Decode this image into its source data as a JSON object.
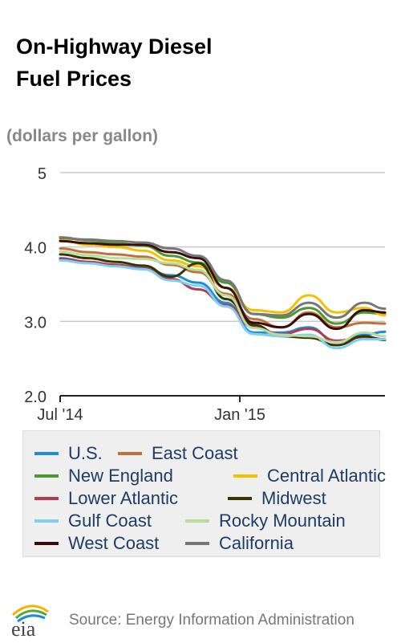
{
  "title_line1": "On-Highway Diesel",
  "title_line2": "Fuel Prices",
  "unit_label": "(dollars per gallon)",
  "source": "Source: Energy Information Administration",
  "logo_text": "eia",
  "colors": {
    "U.S.": "#1a8ed8",
    "East Coast": "#c0703a",
    "New England": "#4a9a2c",
    "Central Atlantic": "#f2c200",
    "Lower Atlantic": "#b23b52",
    "Midwest": "#3a3500",
    "Gulf Coast": "#7fd0f0",
    "Rocky Mountain": "#b9dc9e",
    "West Coast": "#3a0d0d",
    "California": "#777777"
  },
  "chart_data": {
    "type": "line",
    "title": "On-Highway Diesel Fuel Prices",
    "ylabel": "(dollars per gallon)",
    "ylim": [
      2.0,
      5.0
    ],
    "yticks": [
      "2.0",
      "3.0",
      "4.0",
      "5"
    ],
    "xlim": [
      "2014-07-07",
      "2015-06-01"
    ],
    "xticks": [
      {
        "date": "2014-07-07",
        "label": "Jul '14"
      },
      {
        "date": "2015-01-05",
        "label": "Jan '15"
      }
    ],
    "grid": "horizontal",
    "legend_position": "bottom",
    "x": [
      "2014-07-07",
      "2014-08-04",
      "2014-09-01",
      "2014-09-29",
      "2014-10-27",
      "2014-11-24",
      "2014-12-22",
      "2015-01-19",
      "2015-02-16",
      "2015-03-16",
      "2015-04-13",
      "2015-05-11",
      "2015-06-01"
    ],
    "series": [
      {
        "name": "U.S.",
        "values": [
          3.85,
          3.8,
          3.76,
          3.72,
          3.62,
          3.52,
          3.25,
          2.85,
          2.85,
          2.92,
          2.72,
          2.82,
          2.86
        ]
      },
      {
        "name": "East Coast",
        "values": [
          3.98,
          3.93,
          3.9,
          3.87,
          3.76,
          3.66,
          3.37,
          3.03,
          2.92,
          3.12,
          2.92,
          2.98,
          2.97
        ]
      },
      {
        "name": "New England",
        "values": [
          4.13,
          4.09,
          4.05,
          4.02,
          3.88,
          3.79,
          3.52,
          3.1,
          3.05,
          3.18,
          2.97,
          3.12,
          3.1
        ]
      },
      {
        "name": "Central Atlantic",
        "values": [
          4.1,
          4.03,
          4.0,
          3.95,
          3.82,
          3.74,
          3.45,
          3.15,
          3.12,
          3.35,
          3.12,
          3.18,
          3.08
        ]
      },
      {
        "name": "Lower Atlantic",
        "values": [
          3.84,
          3.8,
          3.76,
          3.71,
          3.57,
          3.43,
          3.22,
          2.92,
          2.83,
          2.9,
          2.74,
          2.79,
          2.76
        ]
      },
      {
        "name": "Midwest",
        "values": [
          3.9,
          3.85,
          3.8,
          3.75,
          3.6,
          3.78,
          3.3,
          2.95,
          2.8,
          2.78,
          2.68,
          2.8,
          2.75
        ]
      },
      {
        "name": "Gulf Coast",
        "values": [
          3.82,
          3.78,
          3.74,
          3.7,
          3.55,
          3.48,
          3.2,
          2.83,
          2.8,
          2.82,
          2.64,
          2.76,
          2.76
        ]
      },
      {
        "name": "Rocky Mountain",
        "values": [
          3.94,
          3.89,
          3.85,
          3.84,
          3.78,
          3.69,
          3.35,
          2.91,
          2.82,
          2.8,
          2.72,
          2.85,
          2.8
        ]
      },
      {
        "name": "West Coast",
        "values": [
          4.08,
          4.05,
          4.03,
          4.03,
          3.93,
          3.85,
          3.45,
          2.98,
          2.92,
          3.1,
          2.9,
          3.15,
          3.12
        ]
      },
      {
        "name": "California",
        "values": [
          4.12,
          4.1,
          4.08,
          4.06,
          3.98,
          3.88,
          3.55,
          3.1,
          3.08,
          3.25,
          3.05,
          3.25,
          3.17
        ]
      }
    ]
  }
}
